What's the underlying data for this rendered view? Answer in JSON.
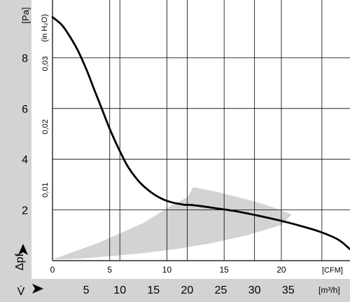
{
  "chart_data": {
    "type": "line",
    "title": "",
    "y_unit_left": "[Pa]",
    "y_symbol_left": "Δpf",
    "y_unit_inner": "(in H₂O)",
    "x_unit_top": "[CFM]",
    "x_symbol_bottom": "V̇",
    "x_unit_bottom": "[m³/h]",
    "grid": true,
    "xlim_cfm": [
      0,
      26
    ],
    "ylim_pa": [
      0,
      10
    ],
    "pa_ticks": [
      "2",
      "4",
      "6",
      "8"
    ],
    "inh2o_ticks": [
      "0,01",
      "0,02",
      "0,03"
    ],
    "cfm_ticks": [
      "0",
      "5",
      "10",
      "15",
      "20"
    ],
    "m3h_ticks": [
      "5",
      "10",
      "15",
      "20",
      "25",
      "30",
      "35"
    ],
    "colors": {
      "curve": "#000000",
      "band": "#d3d3d3",
      "sidebar": "#d3d3d3",
      "grid": "#000000"
    },
    "series": [
      {
        "x": [
          0,
          0.8,
          1.5,
          2.2,
          3.0,
          3.6,
          4.3,
          5.0,
          5.8,
          6.6,
          7.6,
          8.6,
          9.5,
          10.4,
          11.3,
          11.6,
          12.0,
          13.0,
          14.5,
          16.0,
          18.0,
          20.0,
          22.0,
          23.5,
          25.0,
          26.0
        ],
        "y": [
          9.6,
          9.3,
          8.85,
          8.3,
          7.5,
          6.8,
          6.0,
          5.2,
          4.4,
          3.7,
          3.1,
          2.7,
          2.45,
          2.3,
          2.22,
          2.2,
          2.2,
          2.15,
          2.05,
          1.95,
          1.77,
          1.57,
          1.33,
          1.12,
          0.82,
          0.45
        ]
      }
    ],
    "operating_band": {
      "x": [
        0,
        4,
        8,
        10.5,
        11.8,
        12.3,
        14.5,
        17.5,
        19.5,
        20.9,
        20.0,
        17.0,
        14.0,
        11.0,
        8.0,
        5.0,
        2.0,
        0
      ],
      "y": [
        0.05,
        0.7,
        1.5,
        2.2,
        2.5,
        2.9,
        2.7,
        2.35,
        2.07,
        1.82,
        1.4,
        1.0,
        0.7,
        0.47,
        0.3,
        0.17,
        0.07,
        0.05
      ]
    }
  }
}
